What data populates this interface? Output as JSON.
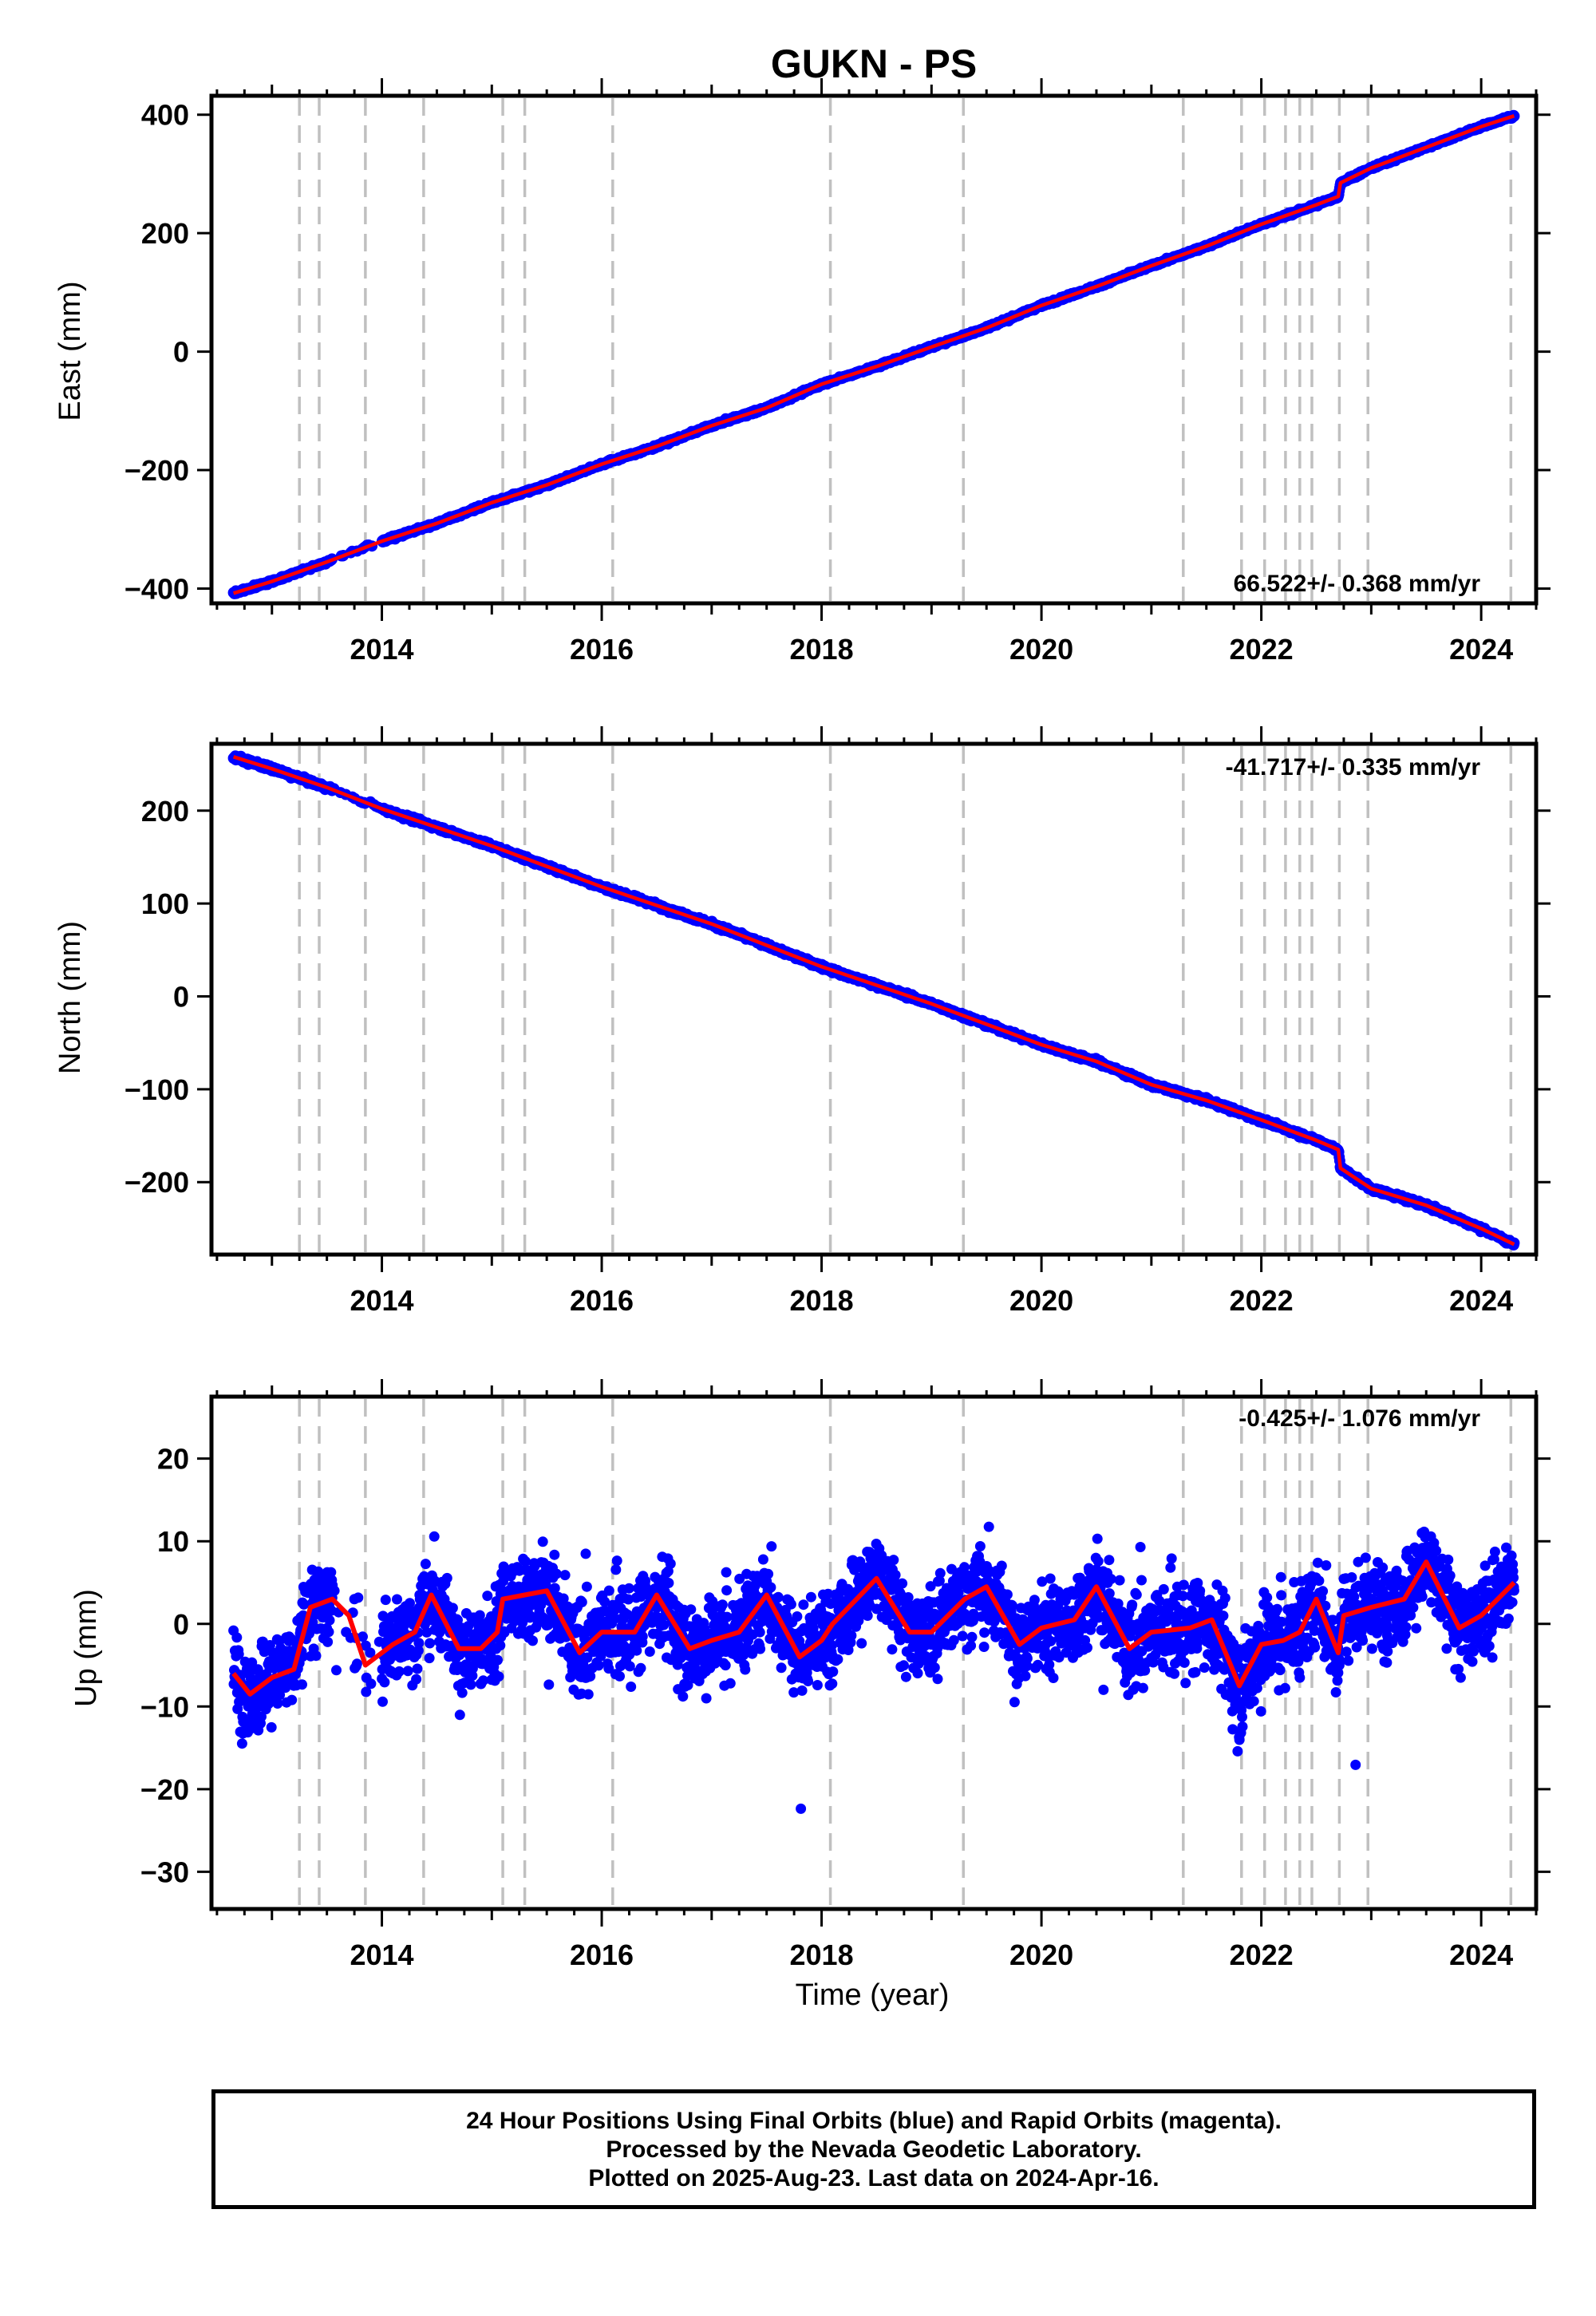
{
  "title": "GUKN - PS",
  "footer": {
    "line1": "24 Hour Positions Using Final Orbits (blue) and Rapid Orbits (magenta).",
    "line2": "Processed by the Nevada Geodetic Laboratory.",
    "line3": "Plotted on 2025-Aug-23. Last data on 2024-Apr-16."
  },
  "colors": {
    "data": "#0000ff",
    "model": "#ff0000",
    "steps": "#c0c0c0",
    "frame": "#000000"
  },
  "chart_data": [
    {
      "type": "scatter",
      "component": "East",
      "ylabel": "East (mm)",
      "xlabel": "",
      "xlim": [
        2012.45,
        2024.5
      ],
      "ylim": [
        -425,
        432
      ],
      "yticks": [
        -400,
        -200,
        0,
        200,
        400
      ],
      "xticks": [
        2014,
        2016,
        2018,
        2020,
        2022,
        2024
      ],
      "rate_text": "66.522+/- 0.368 mm/yr",
      "rate_position": "bottom-right",
      "model_points": [
        [
          2012.65,
          -408
        ],
        [
          2013.0,
          -388
        ],
        [
          2013.5,
          -355
        ],
        [
          2014.0,
          -320
        ],
        [
          2014.5,
          -290
        ],
        [
          2015.0,
          -255
        ],
        [
          2015.5,
          -225
        ],
        [
          2016.0,
          -190
        ],
        [
          2016.5,
          -160
        ],
        [
          2017.0,
          -125
        ],
        [
          2017.5,
          -95
        ],
        [
          2018.0,
          -55
        ],
        [
          2018.5,
          -25
        ],
        [
          2019.0,
          8
        ],
        [
          2019.5,
          40
        ],
        [
          2020.0,
          78
        ],
        [
          2020.5,
          110
        ],
        [
          2021.0,
          145
        ],
        [
          2021.5,
          178
        ],
        [
          2022.0,
          215
        ],
        [
          2022.5,
          248
        ],
        [
          2022.7,
          262
        ],
        [
          2022.72,
          285
        ],
        [
          2023.0,
          310
        ],
        [
          2023.5,
          345
        ],
        [
          2024.0,
          380
        ],
        [
          2024.3,
          398
        ]
      ]
    },
    {
      "type": "scatter",
      "component": "North",
      "ylabel": "North (mm)",
      "xlabel": "",
      "xlim": [
        2012.45,
        2024.5
      ],
      "ylim": [
        -278,
        272
      ],
      "yticks": [
        -200,
        -100,
        0,
        100,
        200
      ],
      "xticks": [
        2014,
        2016,
        2018,
        2020,
        2022,
        2024
      ],
      "rate_text": "-41.717+/- 0.335 mm/yr",
      "rate_position": "top-right",
      "model_points": [
        [
          2012.65,
          258
        ],
        [
          2013.0,
          245
        ],
        [
          2013.5,
          225
        ],
        [
          2014.0,
          202
        ],
        [
          2014.5,
          182
        ],
        [
          2015.0,
          162
        ],
        [
          2015.5,
          140
        ],
        [
          2016.0,
          118
        ],
        [
          2016.5,
          98
        ],
        [
          2017.0,
          78
        ],
        [
          2017.5,
          55
        ],
        [
          2018.0,
          32
        ],
        [
          2018.5,
          12
        ],
        [
          2019.0,
          -8
        ],
        [
          2019.5,
          -30
        ],
        [
          2020.0,
          -52
        ],
        [
          2020.5,
          -70
        ],
        [
          2021.0,
          -95
        ],
        [
          2021.5,
          -112
        ],
        [
          2022.0,
          -133
        ],
        [
          2022.5,
          -155
        ],
        [
          2022.7,
          -165
        ],
        [
          2022.72,
          -185
        ],
        [
          2023.0,
          -207
        ],
        [
          2023.5,
          -225
        ],
        [
          2024.0,
          -250
        ],
        [
          2024.3,
          -267
        ]
      ]
    },
    {
      "type": "scatter",
      "component": "Up",
      "ylabel": "Up (mm)",
      "xlabel": "Time (year)",
      "xlim": [
        2012.45,
        2024.5
      ],
      "ylim": [
        -34.5,
        27.5
      ],
      "yticks": [
        -30,
        -20,
        -10,
        0,
        10,
        20
      ],
      "xticks": [
        2014,
        2016,
        2018,
        2020,
        2022,
        2024
      ],
      "rate_text": "-0.425+/- 1.076 mm/yr",
      "rate_position": "top-right",
      "model_points": [
        [
          2012.65,
          -6
        ],
        [
          2012.8,
          -8.5
        ],
        [
          2013.0,
          -6.5
        ],
        [
          2013.2,
          -5.5
        ],
        [
          2013.35,
          2
        ],
        [
          2013.55,
          3
        ],
        [
          2013.7,
          1
        ],
        [
          2013.85,
          -5
        ],
        [
          2014.1,
          -2.5
        ],
        [
          2014.3,
          -1
        ],
        [
          2014.45,
          3.5
        ],
        [
          2014.7,
          -3
        ],
        [
          2014.9,
          -3
        ],
        [
          2015.05,
          -1
        ],
        [
          2015.1,
          3
        ],
        [
          2015.3,
          3.5
        ],
        [
          2015.5,
          4
        ],
        [
          2015.8,
          -3.5
        ],
        [
          2016.0,
          -1
        ],
        [
          2016.3,
          -1
        ],
        [
          2016.5,
          3.5
        ],
        [
          2016.8,
          -3
        ],
        [
          2017.0,
          -2
        ],
        [
          2017.25,
          -1
        ],
        [
          2017.5,
          3.5
        ],
        [
          2017.8,
          -4
        ],
        [
          2018.0,
          -2
        ],
        [
          2018.1,
          0
        ],
        [
          2018.5,
          5.5
        ],
        [
          2018.8,
          -1
        ],
        [
          2019.0,
          -1
        ],
        [
          2019.3,
          3
        ],
        [
          2019.5,
          4.5
        ],
        [
          2019.8,
          -2.5
        ],
        [
          2020.0,
          -0.5
        ],
        [
          2020.3,
          0.5
        ],
        [
          2020.5,
          4.5
        ],
        [
          2020.8,
          -3
        ],
        [
          2021.0,
          -1
        ],
        [
          2021.35,
          -0.5
        ],
        [
          2021.55,
          0.5
        ],
        [
          2021.8,
          -7.5
        ],
        [
          2022.0,
          -2.5
        ],
        [
          2022.2,
          -2
        ],
        [
          2022.35,
          -1
        ],
        [
          2022.5,
          3
        ],
        [
          2022.7,
          -3.5
        ],
        [
          2022.75,
          1
        ],
        [
          2023.0,
          2
        ],
        [
          2023.3,
          3
        ],
        [
          2023.5,
          7.5
        ],
        [
          2023.8,
          -0.5
        ],
        [
          2024.0,
          1
        ],
        [
          2024.15,
          3
        ],
        [
          2024.3,
          5
        ]
      ]
    }
  ],
  "step_epochs": [
    2013.25,
    2013.43,
    2013.85,
    2014.38,
    2015.1,
    2015.3,
    2016.1,
    2018.08,
    2019.29,
    2021.29,
    2021.82,
    2022.03,
    2022.22,
    2022.35,
    2022.46,
    2022.71,
    2022.97,
    2024.27
  ]
}
